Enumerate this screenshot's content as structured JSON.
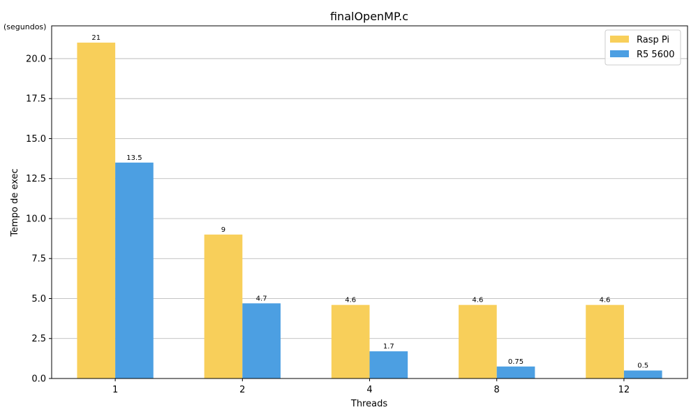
{
  "chart_data": {
    "type": "bar",
    "title": "finalOpenMP.c",
    "xlabel": "Threads",
    "ylabel": "Tempo de exec",
    "y_unit": "(segundos)",
    "categories": [
      "1",
      "2",
      "4",
      "8",
      "12"
    ],
    "series": [
      {
        "name": "Rasp Pi",
        "values": [
          21,
          9,
          4.6,
          4.6,
          4.6
        ],
        "labels": [
          "21",
          "9",
          "4.6",
          "4.6",
          "4.6"
        ],
        "color": "#F8CF5A"
      },
      {
        "name": "R5 5600",
        "values": [
          13.5,
          4.7,
          1.7,
          0.75,
          0.5
        ],
        "labels": [
          "13.5",
          "4.7",
          "1.7",
          "0.75",
          "0.5"
        ],
        "color": "#4C9FE2"
      }
    ],
    "ylim": [
      0,
      22.05
    ],
    "yticks": [
      0,
      2.5,
      5,
      7.5,
      10,
      12.5,
      15,
      17.5,
      20
    ],
    "ytick_labels": [
      "0.0",
      "2.5",
      "5.0",
      "7.5",
      "10.0",
      "12.5",
      "15.0",
      "17.5",
      "20.0"
    ],
    "grid": "y",
    "legend_position": "top-right"
  }
}
